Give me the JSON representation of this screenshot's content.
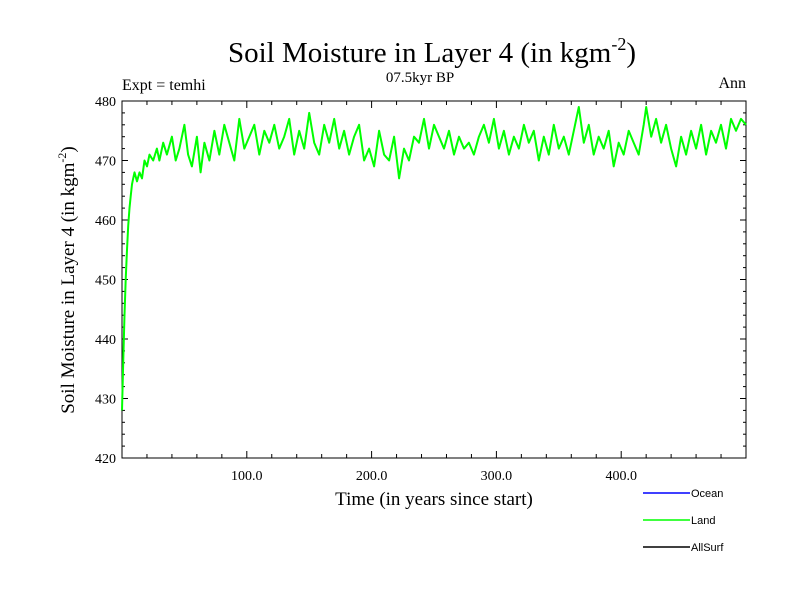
{
  "chart_data": {
    "type": "line",
    "title": "Soil Moisture in Layer 4 (in kgm",
    "title_sup": "-2",
    "title_end": ")",
    "subtitle": "07.5kyr BP",
    "left_label": "Expt = temhi",
    "right_label": "Ann",
    "xlabel": "Time (in years since start)",
    "ylabel": "Soil Moisture in Layer 4 (in kgm",
    "ylabel_sup": "-2",
    "ylabel_end": ")",
    "xlim": [
      0,
      500
    ],
    "ylim": [
      420,
      480
    ],
    "x_ticks": [
      100,
      200,
      300,
      400
    ],
    "x_tick_labels": [
      "100.0",
      "200.0",
      "300.0",
      "400.0"
    ],
    "y_ticks": [
      420,
      430,
      440,
      450,
      460,
      470,
      480
    ],
    "y_tick_labels": [
      "420",
      "430",
      "440",
      "450",
      "460",
      "470",
      "480"
    ],
    "series": [
      {
        "name": "Land",
        "color": "#00ff00",
        "points": [
          [
            0,
            428
          ],
          [
            1,
            436
          ],
          [
            2,
            444
          ],
          [
            3,
            450
          ],
          [
            4,
            455
          ],
          [
            5,
            459
          ],
          [
            6,
            462
          ],
          [
            7,
            464
          ],
          [
            8,
            466
          ],
          [
            9,
            467
          ],
          [
            10,
            468
          ],
          [
            12,
            466.5
          ],
          [
            14,
            468
          ],
          [
            16,
            467
          ],
          [
            18,
            470
          ],
          [
            20,
            469
          ],
          [
            22,
            471
          ],
          [
            25,
            470
          ],
          [
            28,
            472
          ],
          [
            30,
            470
          ],
          [
            33,
            473
          ],
          [
            36,
            471
          ],
          [
            40,
            474
          ],
          [
            43,
            470
          ],
          [
            46,
            472
          ],
          [
            50,
            476
          ],
          [
            53,
            471
          ],
          [
            56,
            469
          ],
          [
            60,
            474
          ],
          [
            63,
            468
          ],
          [
            66,
            473
          ],
          [
            70,
            470
          ],
          [
            74,
            475
          ],
          [
            78,
            471
          ],
          [
            82,
            476
          ],
          [
            86,
            473
          ],
          [
            90,
            470
          ],
          [
            94,
            477
          ],
          [
            98,
            472
          ],
          [
            102,
            474
          ],
          [
            106,
            476
          ],
          [
            110,
            471
          ],
          [
            114,
            475
          ],
          [
            118,
            473
          ],
          [
            122,
            476
          ],
          [
            126,
            472
          ],
          [
            130,
            474
          ],
          [
            134,
            477
          ],
          [
            138,
            471
          ],
          [
            142,
            475
          ],
          [
            146,
            472
          ],
          [
            150,
            478
          ],
          [
            154,
            473
          ],
          [
            158,
            471
          ],
          [
            162,
            476
          ],
          [
            166,
            473
          ],
          [
            170,
            477
          ],
          [
            174,
            472
          ],
          [
            178,
            475
          ],
          [
            182,
            471
          ],
          [
            186,
            474
          ],
          [
            190,
            476
          ],
          [
            194,
            470
          ],
          [
            198,
            472
          ],
          [
            202,
            469
          ],
          [
            206,
            475
          ],
          [
            210,
            471
          ],
          [
            214,
            470
          ],
          [
            218,
            474
          ],
          [
            222,
            467
          ],
          [
            226,
            472
          ],
          [
            230,
            470
          ],
          [
            234,
            474
          ],
          [
            238,
            473
          ],
          [
            242,
            477
          ],
          [
            246,
            472
          ],
          [
            250,
            476
          ],
          [
            254,
            474
          ],
          [
            258,
            472
          ],
          [
            262,
            475
          ],
          [
            266,
            471
          ],
          [
            270,
            474
          ],
          [
            274,
            472
          ],
          [
            278,
            473
          ],
          [
            282,
            471
          ],
          [
            286,
            474
          ],
          [
            290,
            476
          ],
          [
            294,
            473
          ],
          [
            298,
            477
          ],
          [
            302,
            472
          ],
          [
            306,
            475
          ],
          [
            310,
            471
          ],
          [
            314,
            474
          ],
          [
            318,
            472
          ],
          [
            322,
            476
          ],
          [
            326,
            473
          ],
          [
            330,
            475
          ],
          [
            334,
            470
          ],
          [
            338,
            474
          ],
          [
            342,
            471
          ],
          [
            346,
            476
          ],
          [
            350,
            472
          ],
          [
            354,
            474
          ],
          [
            358,
            471
          ],
          [
            362,
            475
          ],
          [
            366,
            479
          ],
          [
            370,
            473
          ],
          [
            374,
            476
          ],
          [
            378,
            471
          ],
          [
            382,
            474
          ],
          [
            386,
            472
          ],
          [
            390,
            475
          ],
          [
            394,
            469
          ],
          [
            398,
            473
          ],
          [
            402,
            471
          ],
          [
            406,
            475
          ],
          [
            410,
            473
          ],
          [
            414,
            471
          ],
          [
            418,
            476
          ],
          [
            420,
            479
          ],
          [
            424,
            474
          ],
          [
            428,
            477
          ],
          [
            432,
            473
          ],
          [
            436,
            476
          ],
          [
            440,
            472
          ],
          [
            444,
            469
          ],
          [
            448,
            474
          ],
          [
            452,
            471
          ],
          [
            456,
            475
          ],
          [
            460,
            472
          ],
          [
            464,
            476
          ],
          [
            468,
            471
          ],
          [
            472,
            475
          ],
          [
            476,
            473
          ],
          [
            480,
            476
          ],
          [
            484,
            472
          ],
          [
            488,
            477
          ],
          [
            492,
            475
          ],
          [
            496,
            477
          ],
          [
            500,
            476
          ]
        ]
      }
    ],
    "legend": [
      {
        "name": "Ocean",
        "color": "#0000ff"
      },
      {
        "name": "Land",
        "color": "#00ff00"
      },
      {
        "name": "AllSurf",
        "color": "#000000"
      }
    ]
  }
}
